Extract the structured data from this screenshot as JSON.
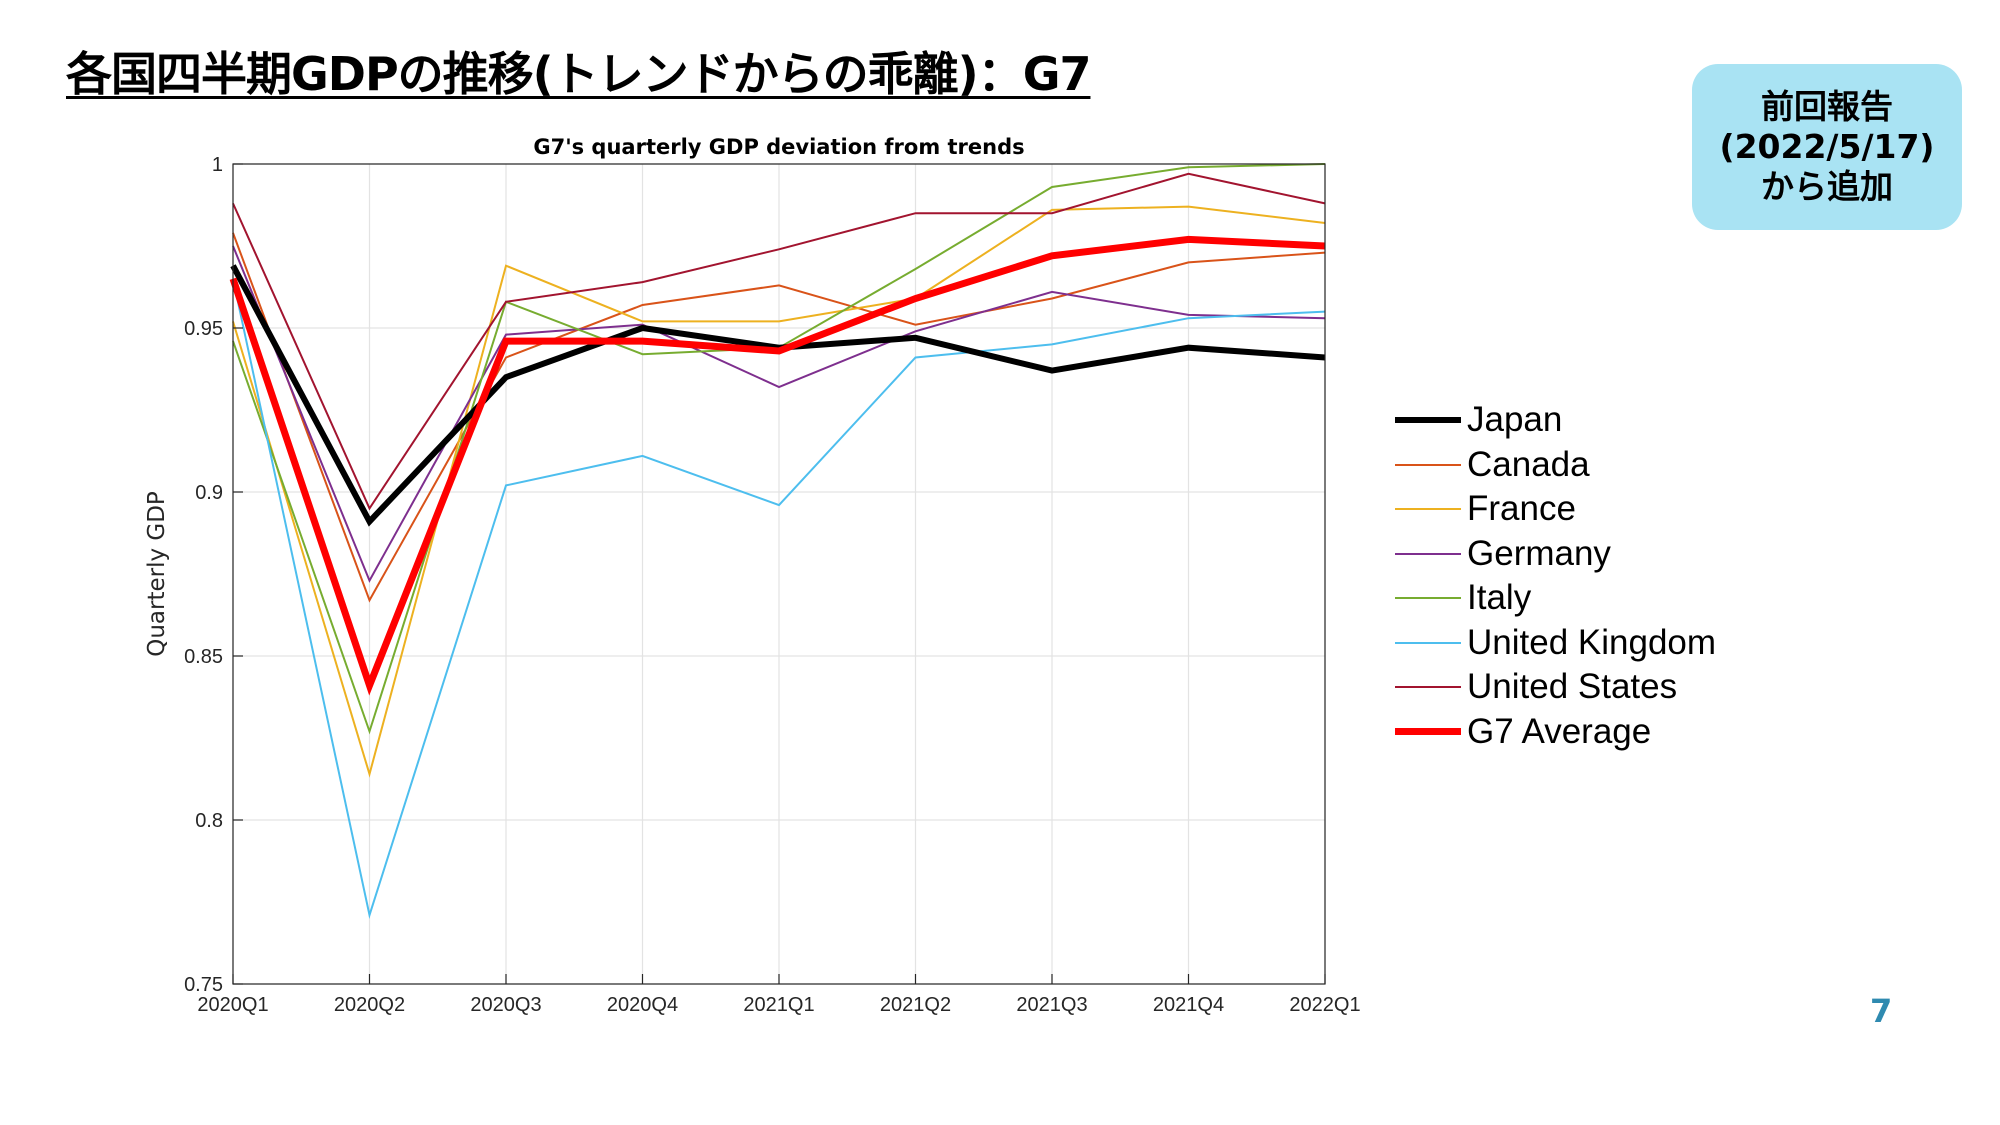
{
  "slide": {
    "title": "各国四半期GDPの推移(トレンドからの乖離)：G7",
    "badge_lines": [
      "前回報告",
      "(2022/5/17)",
      "から追加"
    ],
    "page_number": "7"
  },
  "colors": {
    "badge_bg": "#a9e3f3",
    "page_number": "#2f8ab0"
  },
  "chart_data": {
    "type": "line",
    "title": "G7's quarterly GDP deviation from trends",
    "xlabel": "",
    "ylabel": "Quarterly GDP",
    "categories": [
      "2020Q1",
      "2020Q2",
      "2020Q3",
      "2020Q4",
      "2021Q1",
      "2021Q2",
      "2021Q3",
      "2021Q4",
      "2022Q1"
    ],
    "ylim": [
      0.75,
      1.0
    ],
    "yticks": [
      0.75,
      0.8,
      0.85,
      0.9,
      0.95,
      1
    ],
    "ytick_labels": [
      "0.75",
      "0.8",
      "0.85",
      "0.9",
      "0.95",
      "1"
    ],
    "grid": true,
    "legend_position": "right",
    "series": [
      {
        "name": "Japan",
        "color": "#000000",
        "width": 6,
        "values": [
          0.969,
          0.891,
          0.935,
          0.95,
          0.944,
          0.947,
          0.937,
          0.944,
          0.941
        ]
      },
      {
        "name": "Canada",
        "color": "#d95319",
        "width": 2,
        "values": [
          0.979,
          0.867,
          0.941,
          0.957,
          0.963,
          0.951,
          0.959,
          0.97,
          0.973
        ]
      },
      {
        "name": "France",
        "color": "#edb120",
        "width": 2,
        "values": [
          0.952,
          0.814,
          0.969,
          0.952,
          0.952,
          0.959,
          0.986,
          0.987,
          0.982
        ]
      },
      {
        "name": "Germany",
        "color": "#7e2f8e",
        "width": 2,
        "values": [
          0.975,
          0.873,
          0.948,
          0.951,
          0.932,
          0.949,
          0.961,
          0.954,
          0.953
        ]
      },
      {
        "name": "Italy",
        "color": "#77ac30",
        "width": 2,
        "values": [
          0.946,
          0.827,
          0.958,
          0.942,
          0.944,
          0.968,
          0.993,
          0.999,
          1.0
        ]
      },
      {
        "name": "United Kingdom",
        "color": "#4dbeee",
        "width": 2,
        "values": [
          0.965,
          0.771,
          0.902,
          0.911,
          0.896,
          0.941,
          0.945,
          0.953,
          0.955
        ]
      },
      {
        "name": "United States",
        "color": "#a2142f",
        "width": 2,
        "values": [
          0.988,
          0.895,
          0.958,
          0.964,
          0.974,
          0.985,
          0.985,
          0.997,
          0.988
        ]
      },
      {
        "name": "G7 Average",
        "color": "#ff0000",
        "width": 7,
        "values": [
          0.965,
          0.841,
          0.946,
          0.946,
          0.943,
          0.959,
          0.972,
          0.977,
          0.975
        ]
      }
    ]
  }
}
